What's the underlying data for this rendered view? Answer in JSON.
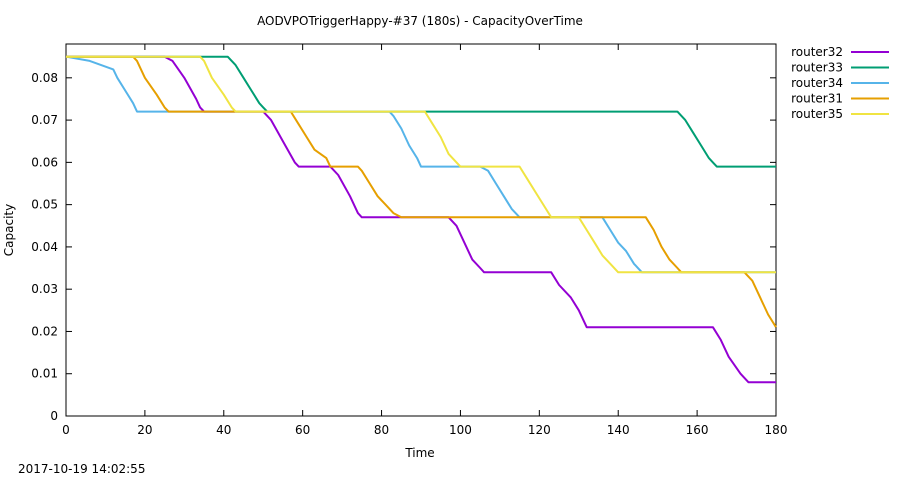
{
  "footer": {
    "timestamp": "2017-10-19 14:02:55"
  },
  "chart_data": {
    "type": "line",
    "title": "AODVPOTriggerHappy-#37 (180s) - CapacityOverTime",
    "xlabel": "Time",
    "ylabel": "Capacity",
    "xlim": [
      0,
      180
    ],
    "ylim": [
      0,
      0.088
    ],
    "x_ticks": [
      0,
      20,
      40,
      60,
      80,
      100,
      120,
      140,
      160,
      180
    ],
    "y_ticks": [
      0,
      0.01,
      0.02,
      0.03,
      0.04,
      0.05,
      0.06,
      0.07,
      0.08
    ],
    "y_tick_labels": [
      "0",
      "0.01",
      "0.02",
      "0.03",
      "0.04",
      "0.05",
      "0.06",
      "0.07",
      "0.08"
    ],
    "grid": false,
    "legend_position": "outside-top-right",
    "series": [
      {
        "name": "router32",
        "color": "#9400d3",
        "points": [
          [
            0,
            0.085
          ],
          [
            25,
            0.085
          ],
          [
            27,
            0.084
          ],
          [
            30,
            0.08
          ],
          [
            33,
            0.075
          ],
          [
            34,
            0.073
          ],
          [
            35,
            0.072
          ],
          [
            50,
            0.072
          ],
          [
            52,
            0.07
          ],
          [
            55,
            0.065
          ],
          [
            58,
            0.06
          ],
          [
            59,
            0.059
          ],
          [
            67,
            0.059
          ],
          [
            69,
            0.057
          ],
          [
            72,
            0.052
          ],
          [
            74,
            0.048
          ],
          [
            75,
            0.047
          ],
          [
            97,
            0.047
          ],
          [
            99,
            0.045
          ],
          [
            101,
            0.041
          ],
          [
            103,
            0.037
          ],
          [
            105,
            0.035
          ],
          [
            106,
            0.034
          ],
          [
            123,
            0.034
          ],
          [
            125,
            0.031
          ],
          [
            128,
            0.028
          ],
          [
            130,
            0.025
          ],
          [
            132,
            0.021
          ],
          [
            164,
            0.021
          ],
          [
            166,
            0.018
          ],
          [
            168,
            0.014
          ],
          [
            171,
            0.01
          ],
          [
            173,
            0.008
          ],
          [
            180,
            0.008
          ]
        ]
      },
      {
        "name": "router33",
        "color": "#009e73",
        "points": [
          [
            0,
            0.085
          ],
          [
            41,
            0.085
          ],
          [
            43,
            0.083
          ],
          [
            45,
            0.08
          ],
          [
            47,
            0.077
          ],
          [
            49,
            0.074
          ],
          [
            50,
            0.073
          ],
          [
            51,
            0.072
          ],
          [
            155,
            0.072
          ],
          [
            157,
            0.07
          ],
          [
            159,
            0.067
          ],
          [
            161,
            0.064
          ],
          [
            163,
            0.061
          ],
          [
            164,
            0.06
          ],
          [
            165,
            0.059
          ],
          [
            180,
            0.059
          ]
        ]
      },
      {
        "name": "router34",
        "color": "#56b4e9",
        "points": [
          [
            0,
            0.085
          ],
          [
            6,
            0.084
          ],
          [
            12,
            0.082
          ],
          [
            13,
            0.08
          ],
          [
            15,
            0.077
          ],
          [
            17,
            0.074
          ],
          [
            18,
            0.072
          ],
          [
            82,
            0.072
          ],
          [
            83,
            0.071
          ],
          [
            85,
            0.068
          ],
          [
            87,
            0.064
          ],
          [
            89,
            0.061
          ],
          [
            90,
            0.059
          ],
          [
            105,
            0.059
          ],
          [
            107,
            0.058
          ],
          [
            109,
            0.055
          ],
          [
            111,
            0.052
          ],
          [
            113,
            0.049
          ],
          [
            115,
            0.047
          ],
          [
            136,
            0.047
          ],
          [
            138,
            0.044
          ],
          [
            140,
            0.041
          ],
          [
            142,
            0.039
          ],
          [
            144,
            0.036
          ],
          [
            146,
            0.034
          ],
          [
            180,
            0.034
          ]
        ]
      },
      {
        "name": "router31",
        "color": "#e69f00",
        "points": [
          [
            0,
            0.085
          ],
          [
            17,
            0.085
          ],
          [
            18,
            0.084
          ],
          [
            20,
            0.08
          ],
          [
            23,
            0.076
          ],
          [
            25,
            0.073
          ],
          [
            26,
            0.072
          ],
          [
            57,
            0.072
          ],
          [
            59,
            0.069
          ],
          [
            61,
            0.066
          ],
          [
            63,
            0.063
          ],
          [
            66,
            0.061
          ],
          [
            67,
            0.059
          ],
          [
            74,
            0.059
          ],
          [
            75,
            0.058
          ],
          [
            77,
            0.055
          ],
          [
            79,
            0.052
          ],
          [
            81,
            0.05
          ],
          [
            83,
            0.048
          ],
          [
            85,
            0.047
          ],
          [
            147,
            0.047
          ],
          [
            149,
            0.044
          ],
          [
            151,
            0.04
          ],
          [
            153,
            0.037
          ],
          [
            155,
            0.035
          ],
          [
            156,
            0.034
          ],
          [
            172,
            0.034
          ],
          [
            174,
            0.032
          ],
          [
            176,
            0.028
          ],
          [
            178,
            0.024
          ],
          [
            180,
            0.021
          ]
        ]
      },
      {
        "name": "router35",
        "color": "#f0e442",
        "points": [
          [
            0,
            0.085
          ],
          [
            34,
            0.085
          ],
          [
            35,
            0.084
          ],
          [
            37,
            0.08
          ],
          [
            40,
            0.076
          ],
          [
            42,
            0.073
          ],
          [
            43,
            0.072
          ],
          [
            91,
            0.072
          ],
          [
            93,
            0.069
          ],
          [
            95,
            0.066
          ],
          [
            97,
            0.062
          ],
          [
            99,
            0.06
          ],
          [
            100,
            0.059
          ],
          [
            115,
            0.059
          ],
          [
            117,
            0.056
          ],
          [
            119,
            0.053
          ],
          [
            121,
            0.05
          ],
          [
            123,
            0.047
          ],
          [
            130,
            0.047
          ],
          [
            132,
            0.044
          ],
          [
            134,
            0.041
          ],
          [
            136,
            0.038
          ],
          [
            138,
            0.036
          ],
          [
            140,
            0.034
          ],
          [
            180,
            0.034
          ]
        ]
      }
    ]
  }
}
